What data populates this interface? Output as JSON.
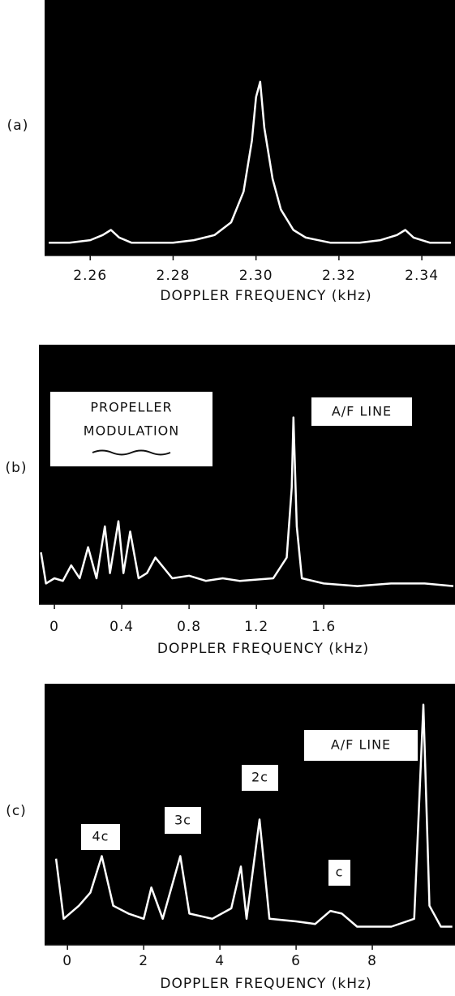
{
  "chart_data": [
    {
      "type": "line",
      "panel_label": "(a)",
      "x_label": "DOPPLER FREQUENCY (kHz)",
      "background": "#000000",
      "xlim": [
        2.249,
        2.348
      ],
      "ylim": [
        0,
        1
      ],
      "xticks": [
        2.26,
        2.28,
        {
          "value": 2.3,
          "label": "2.30"
        },
        2.32,
        2.34
      ],
      "color": "#ffffff",
      "x": [
        2.25,
        2.255,
        2.26,
        2.263,
        2.265,
        2.267,
        2.27,
        2.275,
        2.28,
        2.285,
        2.29,
        2.294,
        2.297,
        2.299,
        2.3,
        2.301,
        2.302,
        2.304,
        2.306,
        2.309,
        2.312,
        2.318,
        2.325,
        2.33,
        2.334,
        2.336,
        2.338,
        2.342,
        2.347
      ],
      "values": [
        0.05,
        0.05,
        0.06,
        0.08,
        0.1,
        0.07,
        0.05,
        0.05,
        0.05,
        0.06,
        0.08,
        0.13,
        0.25,
        0.45,
        0.62,
        0.68,
        0.5,
        0.3,
        0.18,
        0.1,
        0.07,
        0.05,
        0.05,
        0.06,
        0.08,
        0.1,
        0.07,
        0.05,
        0.05
      ],
      "annotations": []
    },
    {
      "type": "line",
      "panel_label": "(b)",
      "x_label": "DOPPLER FREQUENCY (kHz)",
      "background": "#000000",
      "xlim": [
        -0.092,
        2.38
      ],
      "ylim": [
        0,
        1
      ],
      "xticks": [
        0,
        0.4,
        0.8,
        1.2,
        1.6
      ],
      "color": "#ffffff",
      "x": [
        -0.08,
        -0.05,
        0,
        0.05,
        0.1,
        0.15,
        0.2,
        0.25,
        0.3,
        0.33,
        0.38,
        0.41,
        0.45,
        0.5,
        0.55,
        0.6,
        0.7,
        0.8,
        0.9,
        1.0,
        1.1,
        1.3,
        1.38,
        1.41,
        1.42,
        1.44,
        1.47,
        1.6,
        1.8,
        2.0,
        2.2,
        2.37
      ],
      "values": [
        0.2,
        0.08,
        0.1,
        0.09,
        0.15,
        0.1,
        0.22,
        0.1,
        0.3,
        0.12,
        0.32,
        0.12,
        0.28,
        0.1,
        0.12,
        0.18,
        0.1,
        0.11,
        0.09,
        0.1,
        0.09,
        0.1,
        0.18,
        0.45,
        0.72,
        0.3,
        0.1,
        0.08,
        0.07,
        0.08,
        0.08,
        0.07
      ],
      "annotations": [
        [
          "PROPELLER",
          "MODULATION"
        ],
        [
          "A/F LINE"
        ]
      ]
    },
    {
      "type": "line",
      "panel_label": "(c)",
      "x_label": "DOPPLER FREQUENCY (kHz)",
      "background": "#000000",
      "xlim": [
        -0.6,
        10.17
      ],
      "ylim": [
        0,
        1
      ],
      "xticks": [
        0,
        2,
        4,
        6,
        8
      ],
      "color": "#ffffff",
      "x": [
        -0.3,
        -0.1,
        0.3,
        0.6,
        0.9,
        1.2,
        1.6,
        2.0,
        2.2,
        2.5,
        2.96,
        3.2,
        3.8,
        4.3,
        4.55,
        4.7,
        5.04,
        5.3,
        6.0,
        6.5,
        6.9,
        7.2,
        7.6,
        8.5,
        9.1,
        9.34,
        9.5,
        9.8,
        10.1
      ],
      "values": [
        0.33,
        0.1,
        0.15,
        0.2,
        0.34,
        0.15,
        0.12,
        0.1,
        0.22,
        0.1,
        0.34,
        0.12,
        0.1,
        0.14,
        0.3,
        0.1,
        0.48,
        0.1,
        0.09,
        0.08,
        0.13,
        0.12,
        0.07,
        0.07,
        0.1,
        0.92,
        0.15,
        0.07,
        0.07
      ],
      "annotations": [
        [
          "A/F LINE"
        ],
        [
          "2c"
        ],
        [
          "3c"
        ],
        [
          "4c"
        ],
        [
          "c"
        ]
      ]
    }
  ]
}
